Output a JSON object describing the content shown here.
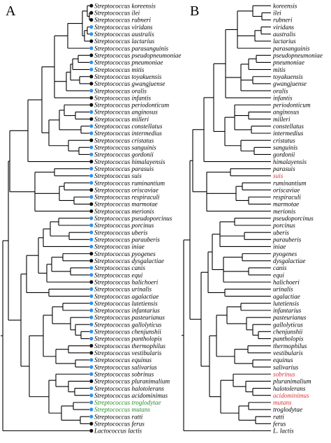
{
  "colors": {
    "branch": "#000000",
    "black_dot": "#111111",
    "blue_dot": "#2e8fe8",
    "green_text": "#2a8a2a",
    "red_text": "#e0312f",
    "default_text": "#000000"
  },
  "panels": [
    {
      "letter": "A",
      "genus_prefix": "Streptococcus ",
      "taxa": [
        {
          "name": "koreensis",
          "dot": "black",
          "color": "default"
        },
        {
          "name": "ilei",
          "dot": "black",
          "color": "default"
        },
        {
          "name": "rubneri",
          "dot": "black",
          "color": "default"
        },
        {
          "name": "viridans",
          "dot": "blue",
          "color": "default"
        },
        {
          "name": "australis",
          "dot": "blue",
          "color": "default"
        },
        {
          "name": "lactarius",
          "dot": "black",
          "color": "default"
        },
        {
          "name": "parasanguinis",
          "dot": "blue",
          "color": "default"
        },
        {
          "name": "pseudopneumoniae",
          "dot": "black",
          "color": "default"
        },
        {
          "name": "pneumoniae",
          "dot": "blue",
          "color": "default"
        },
        {
          "name": "mitis",
          "dot": "blue",
          "color": "default"
        },
        {
          "name": "toyakuensis",
          "dot": "black",
          "color": "default"
        },
        {
          "name": "gwangjuense",
          "dot": "black",
          "color": "default"
        },
        {
          "name": "oralis",
          "dot": "blue",
          "color": "default"
        },
        {
          "name": "infantis",
          "dot": "black",
          "color": "default"
        },
        {
          "name": "periodonticum",
          "dot": "black",
          "color": "default"
        },
        {
          "name": "anginosus",
          "dot": "blue",
          "color": "default"
        },
        {
          "name": "milleri",
          "dot": "black",
          "color": "default"
        },
        {
          "name": "constellatus",
          "dot": "blue",
          "color": "default"
        },
        {
          "name": "intermedius",
          "dot": "blue",
          "color": "default"
        },
        {
          "name": "cristatus",
          "dot": "black",
          "color": "default"
        },
        {
          "name": "sanguinis",
          "dot": "blue",
          "color": "default"
        },
        {
          "name": "gordonii",
          "dot": "blue",
          "color": "default"
        },
        {
          "name": "himalayensis",
          "dot": "black",
          "color": "default"
        },
        {
          "name": "parasuis",
          "dot": "blue",
          "color": "default"
        },
        {
          "name": "suis",
          "dot": "blue",
          "color": "default"
        },
        {
          "name": "ruminantium",
          "dot": "blue",
          "color": "default"
        },
        {
          "name": "oriscaviae",
          "dot": "black",
          "color": "default"
        },
        {
          "name": "respiraculi",
          "dot": "blue",
          "color": "default"
        },
        {
          "name": "marmotae",
          "dot": "black",
          "color": "default"
        },
        {
          "name": "merionis",
          "dot": "black",
          "color": "default"
        },
        {
          "name": "pseudoporcinus",
          "dot": "blue",
          "color": "default"
        },
        {
          "name": "porcinus",
          "dot": "blue",
          "color": "default"
        },
        {
          "name": "uberis",
          "dot": "blue",
          "color": "default"
        },
        {
          "name": "parauberis",
          "dot": "blue",
          "color": "default"
        },
        {
          "name": "iniae",
          "dot": "blue",
          "color": "default"
        },
        {
          "name": "pyogenes",
          "dot": "black",
          "color": "default"
        },
        {
          "name": "dysgalactiae",
          "dot": "black",
          "color": "default"
        },
        {
          "name": "canis",
          "dot": "blue",
          "color": "default"
        },
        {
          "name": "equi",
          "dot": "blue",
          "color": "default"
        },
        {
          "name": "halichoeri",
          "dot": "black",
          "color": "default"
        },
        {
          "name": "urinalis",
          "dot": "blue",
          "color": "default"
        },
        {
          "name": "agalactiae",
          "dot": "blue",
          "color": "default"
        },
        {
          "name": "lutetiensis",
          "dot": "blue",
          "color": "default"
        },
        {
          "name": "infantarius",
          "dot": "blue",
          "color": "default"
        },
        {
          "name": "pasteurianus",
          "dot": "blue",
          "color": "default"
        },
        {
          "name": "gallolyticus",
          "dot": "blue",
          "color": "default"
        },
        {
          "name": "chenjunshii",
          "dot": "blue",
          "color": "default"
        },
        {
          "name": "pantholopis",
          "dot": "blue",
          "color": "default"
        },
        {
          "name": "thermophilus",
          "dot": "black",
          "color": "default"
        },
        {
          "name": "vestibularis",
          "dot": "black",
          "color": "default"
        },
        {
          "name": "equinus",
          "dot": "blue",
          "color": "default"
        },
        {
          "name": "salivarius",
          "dot": "blue",
          "color": "default"
        },
        {
          "name": "sobrinus",
          "dot": "blue",
          "color": "default"
        },
        {
          "name": "pluranimalium",
          "dot": "black",
          "color": "default"
        },
        {
          "name": "halotolerans",
          "dot": "blue",
          "color": "default"
        },
        {
          "name": "acidominimus",
          "dot": "blue",
          "color": "default"
        },
        {
          "name": "troglodytae",
          "dot": "blue",
          "color": "green"
        },
        {
          "name": "mutans",
          "dot": "blue",
          "color": "green"
        },
        {
          "name": "ratti",
          "dot": "blue",
          "color": "default"
        },
        {
          "name": "ferus",
          "dot": "black",
          "color": "default"
        },
        {
          "name": "Lactococcus lactis",
          "dot": "black",
          "color": "default",
          "full": true
        }
      ]
    },
    {
      "letter": "B",
      "genus_prefix": "",
      "taxa": [
        {
          "name": "koreensis",
          "color": "default"
        },
        {
          "name": "ilei",
          "color": "default"
        },
        {
          "name": "rubneri",
          "color": "default"
        },
        {
          "name": "viridans",
          "color": "default"
        },
        {
          "name": "australis",
          "color": "default"
        },
        {
          "name": "lactarius",
          "color": "default"
        },
        {
          "name": "parasanguinis",
          "color": "default"
        },
        {
          "name": "pseudopneumoniae",
          "color": "default"
        },
        {
          "name": "pneumoniae",
          "color": "default"
        },
        {
          "name": "mitis",
          "color": "default"
        },
        {
          "name": "toyakuensis",
          "color": "default"
        },
        {
          "name": "gwangjuense",
          "color": "default"
        },
        {
          "name": "oralis",
          "color": "default"
        },
        {
          "name": "infantis",
          "color": "default"
        },
        {
          "name": "periodonticum",
          "color": "default"
        },
        {
          "name": "anginosus",
          "color": "default"
        },
        {
          "name": "milleri",
          "color": "default"
        },
        {
          "name": "constellatus",
          "color": "default"
        },
        {
          "name": "intermedius",
          "color": "default"
        },
        {
          "name": "cristatus",
          "color": "default"
        },
        {
          "name": "sanguinis",
          "color": "default"
        },
        {
          "name": "gordonii",
          "color": "default"
        },
        {
          "name": "himalayensis",
          "color": "default"
        },
        {
          "name": "parasuis",
          "color": "default"
        },
        {
          "name": "suis",
          "color": "red"
        },
        {
          "name": "ruminantium",
          "color": "default"
        },
        {
          "name": "oriscaviae",
          "color": "default"
        },
        {
          "name": "respiraculi",
          "color": "default"
        },
        {
          "name": "marmotae",
          "color": "default"
        },
        {
          "name": "merionis",
          "color": "default"
        },
        {
          "name": "pseudoporcinus",
          "color": "default"
        },
        {
          "name": "porcinus",
          "color": "default"
        },
        {
          "name": "uberis",
          "color": "default"
        },
        {
          "name": "parauberis",
          "color": "default"
        },
        {
          "name": "iniae",
          "color": "default"
        },
        {
          "name": "pyogenes",
          "color": "default"
        },
        {
          "name": "dysgalactiae",
          "color": "default"
        },
        {
          "name": "canis",
          "color": "default"
        },
        {
          "name": "equi",
          "color": "default"
        },
        {
          "name": "halichoeri",
          "color": "default"
        },
        {
          "name": "urinalis",
          "color": "default"
        },
        {
          "name": "agalactiae",
          "color": "default"
        },
        {
          "name": "lutetiensis",
          "color": "default"
        },
        {
          "name": "infantarius",
          "color": "default"
        },
        {
          "name": "pasteurianus",
          "color": "default"
        },
        {
          "name": "gallolyticus",
          "color": "default"
        },
        {
          "name": "chenjunshii",
          "color": "default"
        },
        {
          "name": "pantholopis",
          "color": "default"
        },
        {
          "name": "thermophilus",
          "color": "default"
        },
        {
          "name": "vestibularis",
          "color": "default"
        },
        {
          "name": "equinus",
          "color": "default"
        },
        {
          "name": "salivarius",
          "color": "default"
        },
        {
          "name": "sobrinus",
          "color": "red"
        },
        {
          "name": "pluranimalium",
          "color": "default"
        },
        {
          "name": "halotolerans",
          "color": "default"
        },
        {
          "name": "acidominimus",
          "color": "red"
        },
        {
          "name": "mutans",
          "color": "red"
        },
        {
          "name": "troglodytae",
          "color": "default"
        },
        {
          "name": "ratti",
          "color": "default"
        },
        {
          "name": "ferus",
          "color": "default"
        },
        {
          "name": "L. lactis",
          "color": "default"
        }
      ]
    }
  ]
}
